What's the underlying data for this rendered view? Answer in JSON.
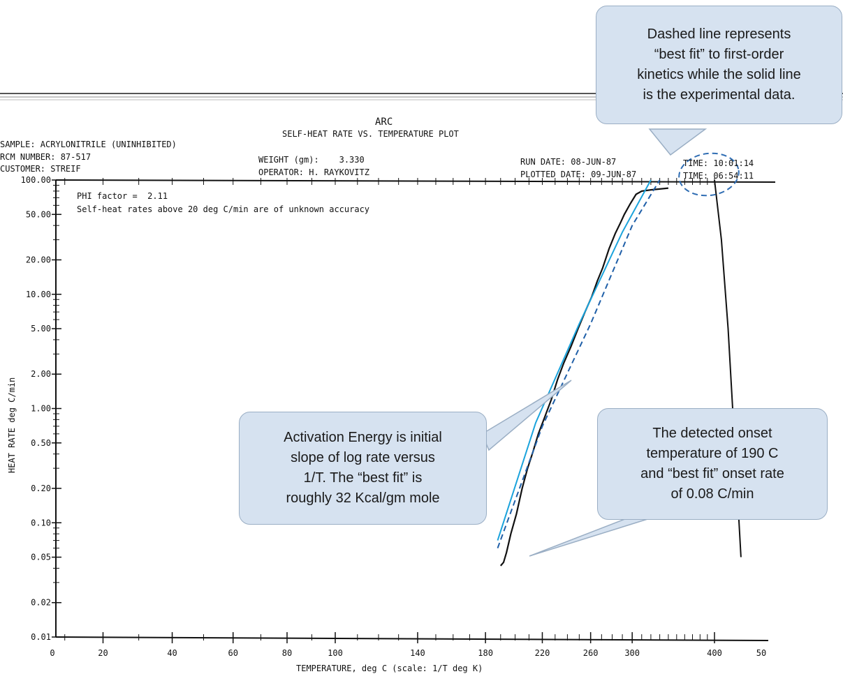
{
  "header": {
    "arc": "ARC",
    "plot_title": "SELF-HEAT RATE VS. TEMPERATURE PLOT",
    "sample": "SAMPLE: ACRYLONITRILE (UNINHIBITED)",
    "rcm_number": "RCM NUMBER: 87-517",
    "customer": "CUSTOMER: STREIF",
    "weight": "WEIGHT (gm):    3.330",
    "operator": "OPERATOR: H. RAYKOVITZ",
    "run_date": "RUN DATE: 08-JUN-87",
    "plotted_date": "PLOTTED DATE: 09-JUN-87",
    "time_run": "TIME: 10:01:14",
    "time_plotted": "TIME: 06:54:11"
  },
  "notes": {
    "phi": "PHI factor =  2.11",
    "accuracy": "Self-heat rates above 20 deg C/min are of unknown accuracy"
  },
  "callouts": {
    "dashed_fit": [
      "Dashed line represents",
      "“best fit” to first-order",
      "kinetics while the solid line",
      "is the experimental data."
    ],
    "activation_energy": [
      "Activation Energy is initial",
      "slope of log rate versus",
      "1/T.  The “best fit” is",
      "roughly 32 Kcal/gm mole"
    ],
    "onset": [
      "The detected onset",
      "temperature of 190 C",
      "and “best fit” onset rate",
      "of 0.08 C/min"
    ]
  },
  "colors": {
    "background": "#ffffff",
    "experimental_line": "#111111",
    "best_fit_line": "#1f5fa8",
    "initial_slope_line": "#1aa3dc",
    "callout_fill": "#d6e2f0",
    "callout_border": "#9aaec4"
  },
  "chart_data": {
    "type": "line",
    "xlabel": "TEMPERATURE, deg C  (scale: 1/T deg K)",
    "ylabel": "HEAT RATE deg C/min",
    "x_tick_labels": [
      "0",
      "20",
      "40",
      "60",
      "80",
      "100",
      "140",
      "180",
      "220",
      "260",
      "300",
      "400",
      "50"
    ],
    "y_tick_labels": [
      "100.00",
      "50.00",
      "20.00",
      "10.00",
      "5.00",
      "2.00",
      "1.00",
      "0.50",
      "0.20",
      "0.10",
      "0.05",
      "0.02",
      "0.01"
    ],
    "x_scale": "reciprocal (1/T deg K)",
    "y_scale": "log",
    "ylim": [
      0.01,
      100
    ],
    "series": [
      {
        "name": "",
        "style": "solid",
        "points": [
          [
            190,
            0.042
          ],
          [
            192,
            0.045
          ],
          [
            194,
            0.055
          ],
          [
            197,
            0.08
          ],
          [
            201,
            0.12
          ],
          [
            205,
            0.2
          ],
          [
            209,
            0.3
          ],
          [
            213,
            0.42
          ],
          [
            217,
            0.6
          ],
          [
            222,
            0.85
          ],
          [
            227,
            1.2
          ],
          [
            232,
            1.8
          ],
          [
            237,
            2.5
          ],
          [
            243,
            3.5
          ],
          [
            249,
            5.0
          ],
          [
            255,
            7.0
          ],
          [
            261,
            9.5
          ],
          [
            266,
            13
          ],
          [
            271,
            17
          ],
          [
            277,
            25
          ],
          [
            283,
            34
          ],
          [
            288,
            42
          ],
          [
            292,
            50
          ],
          [
            298,
            62
          ],
          [
            304,
            75
          ],
          [
            310,
            80
          ],
          [
            320,
            82
          ],
          [
            340,
            85
          ]
        ]
      },
      {
        "name": "",
        "style": "descending",
        "points": [
          [
            400,
            100
          ],
          [
            410,
            30
          ],
          [
            420,
            5
          ],
          [
            430,
            0.5
          ],
          [
            440,
            0.05
          ]
        ]
      },
      {
        "name": "",
        "style": "dashed",
        "points": [
          [
            188,
            0.06
          ],
          [
            220,
            0.7
          ],
          [
            260,
            5.5
          ],
          [
            300,
            40
          ],
          [
            330,
            100
          ]
        ]
      },
      {
        "name": "",
        "style": "solid-blue",
        "points": [
          [
            188,
            0.07
          ],
          [
            215,
            0.75
          ],
          [
            250,
            5.5
          ],
          [
            290,
            35
          ],
          [
            320,
            100
          ]
        ]
      }
    ]
  }
}
